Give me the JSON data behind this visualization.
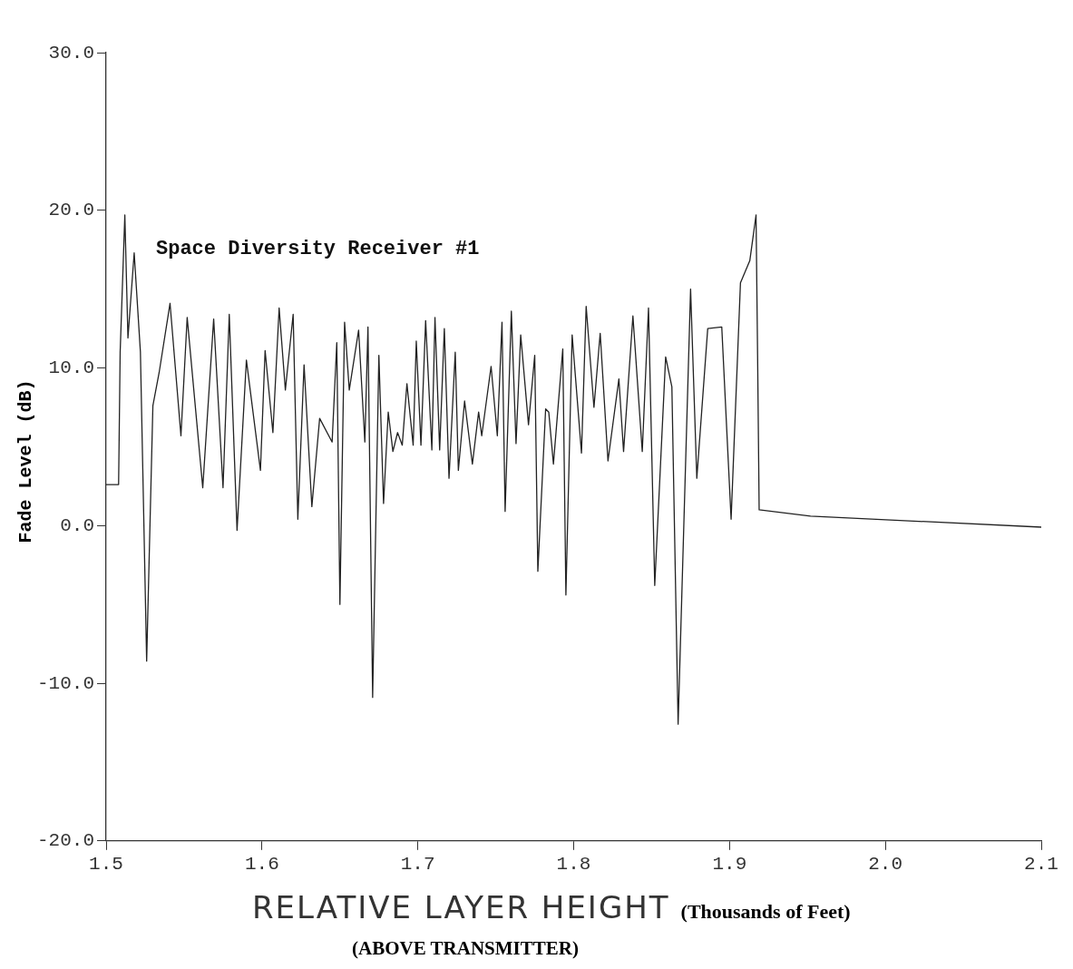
{
  "chart_data": {
    "type": "line",
    "xlabel": "RELATIVE LAYER HEIGHT",
    "ylabel": "Fade Level (dB)",
    "annotations": [
      "(Thousands of Feet)",
      "(ABOVE TRANSMITTER)"
    ],
    "xlim": [
      1.5,
      2.1
    ],
    "xticks": [
      1.5,
      1.6,
      1.7,
      1.8,
      1.9,
      {
        "value": 2.0,
        "label": "2.0"
      },
      2.1
    ],
    "ylim": [
      -20,
      30
    ],
    "yticks": [
      {
        "value": -20,
        "label": "-20.0"
      },
      {
        "value": -10,
        "label": "-10.0"
      },
      {
        "value": 0,
        "label": "0.0"
      },
      {
        "value": 10,
        "label": "10.0"
      },
      {
        "value": 20,
        "label": "20.0"
      },
      {
        "value": 30,
        "label": "30.0"
      }
    ],
    "marker": "none",
    "line_style": "solid",
    "legend": false,
    "series": [
      {
        "name": "Space Diversity Receiver #1",
        "color": "#222222",
        "x": [
          1.5,
          1.508,
          1.509,
          1.512,
          1.514,
          1.518,
          1.522,
          1.526,
          1.53,
          1.534,
          1.541,
          1.548,
          1.552,
          1.562,
          1.569,
          1.575,
          1.579,
          1.584,
          1.59,
          1.599,
          1.602,
          1.607,
          1.611,
          1.615,
          1.62,
          1.623,
          1.627,
          1.632,
          1.637,
          1.645,
          1.648,
          1.65,
          1.653,
          1.656,
          1.662,
          1.666,
          1.668,
          1.671,
          1.675,
          1.678,
          1.681,
          1.684,
          1.687,
          1.69,
          1.693,
          1.697,
          1.699,
          1.702,
          1.705,
          1.709,
          1.711,
          1.714,
          1.717,
          1.72,
          1.724,
          1.726,
          1.73,
          1.735,
          1.739,
          1.741,
          1.747,
          1.751,
          1.754,
          1.756,
          1.76,
          1.763,
          1.766,
          1.771,
          1.775,
          1.777,
          1.782,
          1.784,
          1.787,
          1.793,
          1.795,
          1.799,
          1.805,
          1.808,
          1.813,
          1.817,
          1.822,
          1.829,
          1.832,
          1.838,
          1.844,
          1.848,
          1.852,
          1.859,
          1.863,
          1.867,
          1.875,
          1.879,
          1.886,
          1.895,
          1.901,
          1.907,
          1.913,
          1.917,
          1.918,
          1.919,
          1.952,
          2.1
        ],
        "values": [
          2.6,
          2.6,
          11,
          19.7,
          11.9,
          17.3,
          11,
          -8.6,
          7.6,
          9.7,
          14.1,
          5.7,
          13.2,
          2.4,
          13.1,
          2.4,
          13.4,
          -0.3,
          10.5,
          3.5,
          11.1,
          5.9,
          13.8,
          8.6,
          13.4,
          0.4,
          10.2,
          1.2,
          6.8,
          5.3,
          11.6,
          -5.0,
          12.9,
          8.6,
          12.4,
          5.3,
          12.6,
          -10.9,
          10.8,
          1.4,
          7.2,
          4.7,
          5.9,
          5.1,
          9.0,
          5.1,
          11.7,
          5.1,
          13.0,
          4.8,
          13.2,
          4.8,
          12.5,
          3.0,
          11.0,
          3.5,
          7.9,
          3.9,
          7.2,
          5.7,
          10.1,
          5.7,
          12.9,
          0.9,
          13.6,
          5.2,
          12.1,
          6.4,
          10.8,
          -2.9,
          7.4,
          7.2,
          3.9,
          11.2,
          -4.4,
          12.1,
          4.6,
          13.9,
          7.5,
          12.2,
          4.1,
          9.3,
          4.7,
          13.3,
          4.7,
          13.8,
          -3.8,
          10.7,
          8.8,
          -12.6,
          15.0,
          3.0,
          12.5,
          12.6,
          0.4,
          15.4,
          16.8,
          19.7,
          10.8,
          1.0,
          0.6,
          -0.1
        ]
      }
    ]
  }
}
